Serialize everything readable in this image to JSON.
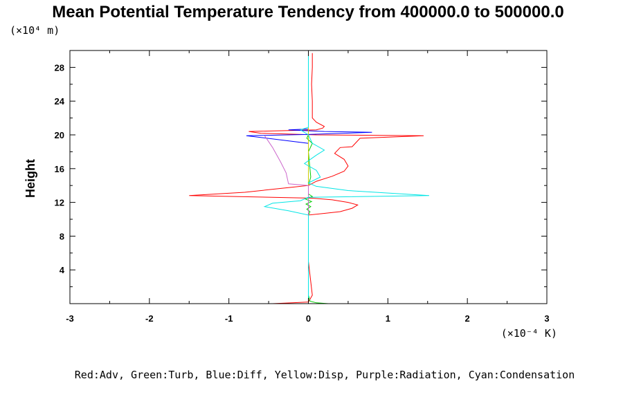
{
  "chart_data": {
    "type": "line",
    "title": "Mean Potential Temperature Tendency from 400000.0 to 500000.0",
    "ylabel": "Height",
    "y_scale_label": "(×10⁴ m)",
    "x_scale_label": "(×10⁻⁴ K)",
    "xlim": [
      -3,
      3
    ],
    "ylim": [
      0,
      30
    ],
    "x_ticks": [
      -3,
      -2,
      -1,
      0,
      1,
      2,
      3
    ],
    "x_tick_labels": [
      "-3",
      "-2",
      "-1",
      "0",
      "1",
      "2",
      "3"
    ],
    "y_ticks": [
      4,
      8,
      12,
      16,
      20,
      24,
      28
    ],
    "y_tick_labels": [
      "4",
      "8",
      "12",
      "16",
      "20",
      "24",
      "28"
    ],
    "legend_text": "Red:Adv, Green:Turb, Blue:Diff, Yellow:Disp, Purple:Radiation, Cyan:Condensation",
    "grid": false,
    "series": [
      {
        "name": "Adv",
        "color": "#ff0000",
        "points": [
          [
            -0.45,
            0.0
          ],
          [
            -0.2,
            0.1
          ],
          [
            0.0,
            0.2
          ],
          [
            0.05,
            1.0
          ],
          [
            0.0,
            5.0
          ],
          [
            0.0,
            10.5
          ],
          [
            0.2,
            10.7
          ],
          [
            0.4,
            10.9
          ],
          [
            0.55,
            11.3
          ],
          [
            0.62,
            11.7
          ],
          [
            0.5,
            12.0
          ],
          [
            0.3,
            12.3
          ],
          [
            0.05,
            12.5
          ],
          [
            -1.5,
            12.8
          ],
          [
            -0.8,
            13.2
          ],
          [
            -0.2,
            13.8
          ],
          [
            0.0,
            14.0
          ],
          [
            0.1,
            14.5
          ],
          [
            0.3,
            15.1
          ],
          [
            0.45,
            15.7
          ],
          [
            0.5,
            16.3
          ],
          [
            0.45,
            17.1
          ],
          [
            0.33,
            17.8
          ],
          [
            0.4,
            18.5
          ],
          [
            0.55,
            18.6
          ],
          [
            0.6,
            19.1
          ],
          [
            0.65,
            19.6
          ],
          [
            1.45,
            19.9
          ],
          [
            0.1,
            20.0
          ],
          [
            -0.6,
            20.2
          ],
          [
            -0.75,
            20.4
          ],
          [
            0.1,
            20.6
          ],
          [
            0.18,
            20.8
          ],
          [
            0.2,
            21.0
          ],
          [
            0.1,
            21.5
          ],
          [
            0.05,
            22.0
          ],
          [
            0.05,
            24.0
          ],
          [
            0.04,
            26.0
          ],
          [
            0.05,
            28.0
          ],
          [
            0.05,
            29.7
          ]
        ]
      },
      {
        "name": "Turb",
        "color": "#00cc00",
        "points": [
          [
            0.25,
            0.0
          ],
          [
            0.1,
            0.1
          ],
          [
            0.02,
            0.3
          ],
          [
            0.0,
            1.0
          ],
          [
            0.0,
            10.5
          ],
          [
            0.02,
            10.9
          ],
          [
            -0.02,
            11.2
          ],
          [
            0.03,
            11.5
          ],
          [
            -0.03,
            11.8
          ],
          [
            0.04,
            12.1
          ],
          [
            -0.04,
            12.4
          ],
          [
            0.05,
            12.7
          ],
          [
            0.0,
            13.0
          ],
          [
            0.0,
            14.0
          ],
          [
            0.03,
            15.0
          ],
          [
            0.0,
            18.0
          ],
          [
            0.05,
            19.0
          ],
          [
            -0.02,
            19.6
          ],
          [
            0.0,
            20.0
          ],
          [
            0.0,
            29.7
          ]
        ]
      },
      {
        "name": "Diff",
        "color": "#0000ff",
        "points": [
          [
            0.0,
            0.0
          ],
          [
            0.0,
            19.0
          ],
          [
            -0.78,
            19.9
          ],
          [
            0.0,
            20.05
          ],
          [
            0.8,
            20.3
          ],
          [
            0.2,
            20.4
          ],
          [
            -0.25,
            20.6
          ],
          [
            0.0,
            20.7
          ],
          [
            0.0,
            29.7
          ]
        ]
      },
      {
        "name": "Disp",
        "color": "#cccc00",
        "points": [
          [
            0.0,
            0.0
          ],
          [
            0.0,
            29.7
          ]
        ]
      },
      {
        "name": "Radiation",
        "color": "#cc66cc",
        "points": [
          [
            -0.55,
            19.9
          ],
          [
            -0.45,
            18.5
          ],
          [
            -0.35,
            16.8
          ],
          [
            -0.28,
            15.5
          ],
          [
            -0.25,
            14.2
          ],
          [
            0.0,
            14.0
          ],
          [
            0.0,
            0.2
          ]
        ]
      },
      {
        "name": "Condensation",
        "color": "#00e5e5",
        "points": [
          [
            0.0,
            0.0
          ],
          [
            0.0,
            10.5
          ],
          [
            -0.25,
            11.0
          ],
          [
            -0.55,
            11.5
          ],
          [
            -0.45,
            11.9
          ],
          [
            -0.1,
            12.2
          ],
          [
            0.0,
            12.6
          ],
          [
            1.52,
            12.8
          ],
          [
            0.5,
            13.4
          ],
          [
            0.1,
            13.9
          ],
          [
            0.0,
            14.3
          ],
          [
            0.15,
            15.0
          ],
          [
            0.1,
            15.8
          ],
          [
            -0.05,
            16.6
          ],
          [
            0.1,
            17.6
          ],
          [
            0.2,
            18.2
          ],
          [
            0.05,
            19.0
          ],
          [
            0.0,
            20.0
          ],
          [
            -0.1,
            20.6
          ],
          [
            0.0,
            20.9
          ],
          [
            0.0,
            29.7
          ]
        ]
      }
    ]
  }
}
